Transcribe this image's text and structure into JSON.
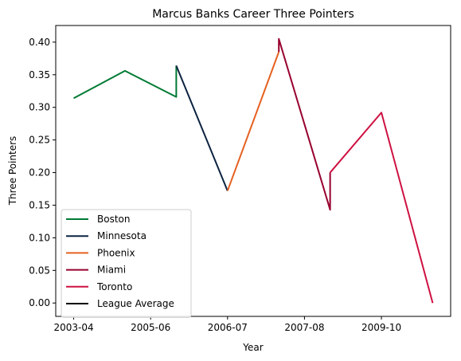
{
  "chart_data": {
    "type": "line",
    "title": "Marcus Banks Career Three Pointers",
    "xlabel": "Year",
    "ylabel": "Three Pointers",
    "xlim": [
      -0.35,
      7.35
    ],
    "ylim": [
      -0.0205,
      0.4255
    ],
    "x_ticks": [
      {
        "pos": 0,
        "label": "2003-04"
      },
      {
        "pos": 1.5,
        "label": "2005-06"
      },
      {
        "pos": 3,
        "label": "2006-07"
      },
      {
        "pos": 4.5,
        "label": "2007-08"
      },
      {
        "pos": 6,
        "label": "2009-10"
      }
    ],
    "y_ticks": [
      0.0,
      0.05,
      0.1,
      0.15,
      0.2,
      0.25,
      0.3,
      0.35,
      0.4
    ],
    "y_tick_labels": [
      "0.00",
      "0.05",
      "0.10",
      "0.15",
      "0.20",
      "0.25",
      "0.30",
      "0.35",
      "0.40"
    ],
    "grid": false,
    "legend_position": "lower-left",
    "series": [
      {
        "name": "Boston",
        "color": "#007a33",
        "x": [
          0,
          1,
          2,
          2
        ],
        "y": [
          0.314,
          0.356,
          0.316,
          0.364
        ]
      },
      {
        "name": "Minnesota",
        "color": "#0c2340",
        "x": [
          2,
          3
        ],
        "y": [
          0.364,
          0.172
        ]
      },
      {
        "name": "Phoenix",
        "color": "#e56020",
        "x": [
          3,
          4
        ],
        "y": [
          0.172,
          0.385
        ]
      },
      {
        "name": "Miami",
        "color": "#98002e",
        "x": [
          4,
          4,
          5,
          5
        ],
        "y": [
          0.385,
          0.405,
          0.143,
          0.2
        ]
      },
      {
        "name": "Toronto",
        "color": "#ce1141",
        "x": [
          5,
          6,
          7
        ],
        "y": [
          0.2,
          0.292,
          0.0
        ]
      },
      {
        "name": "League Average",
        "color": "#000000",
        "x": [],
        "y": []
      }
    ]
  }
}
